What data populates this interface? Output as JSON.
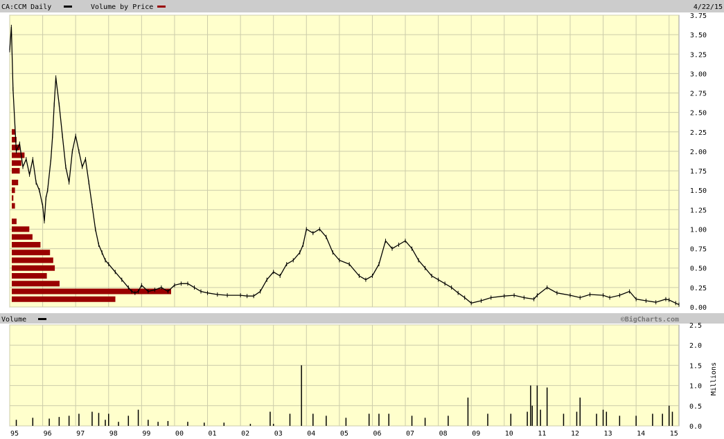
{
  "header": {
    "symbol_label": "CA:CCM Daily",
    "vbp_label": "Volume by Price",
    "date": "4/22/15"
  },
  "volume_panel": {
    "label": "Volume",
    "credit": "©BigCharts.com",
    "unit_label": "Millions"
  },
  "colors": {
    "background": "#ffffcc",
    "grid": "#ccccaa",
    "price_line": "#000000",
    "volume_by_price": "#990000",
    "volume_bars": "#000000",
    "header_bar": "#cccccc"
  },
  "x_tick_labels": [
    "95",
    "96",
    "97",
    "98",
    "99",
    "00",
    "01",
    "02",
    "03",
    "04",
    "05",
    "06",
    "07",
    "08",
    "09",
    "10",
    "11",
    "12",
    "13",
    "14",
    "15"
  ],
  "chart_data": [
    {
      "type": "line",
      "title": "CA:CCM Daily",
      "series": [
        {
          "name": "CA:CCM Daily",
          "x": [
            1995.0,
            1995.05,
            1995.1,
            1995.2,
            1995.3,
            1995.4,
            1995.5,
            1995.6,
            1995.7,
            1995.8,
            1995.9,
            1996.0,
            1996.05,
            1996.1,
            1996.15,
            1996.25,
            1996.3,
            1996.35,
            1996.4,
            1996.5,
            1996.6,
            1996.7,
            1996.8,
            1996.9,
            1997.0,
            1997.1,
            1997.2,
            1997.3,
            1997.4,
            1997.5,
            1997.6,
            1997.7,
            1997.8,
            1997.9,
            1998.0,
            1998.2,
            1998.4,
            1998.6,
            1998.7,
            1998.8,
            1998.9,
            1999.0,
            1999.2,
            1999.4,
            1999.6,
            1999.8,
            2000.0,
            2000.2,
            2000.4,
            2000.6,
            2000.8,
            2001.0,
            2001.3,
            2001.6,
            2002.0,
            2002.2,
            2002.4,
            2002.6,
            2002.8,
            2003.0,
            2003.2,
            2003.4,
            2003.6,
            2003.8,
            2003.9,
            2004.0,
            2004.2,
            2004.4,
            2004.6,
            2004.8,
            2005.0,
            2005.3,
            2005.6,
            2005.8,
            2006.0,
            2006.2,
            2006.4,
            2006.6,
            2006.8,
            2007.0,
            2007.2,
            2007.4,
            2007.6,
            2007.8,
            2008.0,
            2008.2,
            2008.4,
            2008.6,
            2008.8,
            2009.0,
            2009.3,
            2009.6,
            2010.0,
            2010.3,
            2010.6,
            2010.9,
            2011.0,
            2011.3,
            2011.6,
            2012.0,
            2012.3,
            2012.6,
            2013.0,
            2013.2,
            2013.5,
            2013.8,
            2014.0,
            2014.3,
            2014.6,
            2014.9,
            2015.0,
            2015.2,
            2015.3
          ],
          "y": [
            3.3,
            3.6,
            2.8,
            2.0,
            2.1,
            1.8,
            1.9,
            1.7,
            1.9,
            1.6,
            1.5,
            1.3,
            1.1,
            1.4,
            1.5,
            1.9,
            2.2,
            2.6,
            2.95,
            2.6,
            2.2,
            1.8,
            1.6,
            2.0,
            2.2,
            2.0,
            1.8,
            1.9,
            1.6,
            1.3,
            1.0,
            0.8,
            0.7,
            0.6,
            0.55,
            0.45,
            0.35,
            0.25,
            0.2,
            0.18,
            0.2,
            0.28,
            0.2,
            0.22,
            0.25,
            0.2,
            0.28,
            0.3,
            0.3,
            0.25,
            0.2,
            0.18,
            0.16,
            0.15,
            0.15,
            0.14,
            0.14,
            0.2,
            0.35,
            0.45,
            0.4,
            0.55,
            0.6,
            0.7,
            0.8,
            1.0,
            0.95,
            1.0,
            0.9,
            0.7,
            0.6,
            0.55,
            0.4,
            0.35,
            0.4,
            0.55,
            0.85,
            0.75,
            0.8,
            0.85,
            0.75,
            0.6,
            0.5,
            0.4,
            0.35,
            0.3,
            0.25,
            0.18,
            0.12,
            0.05,
            0.08,
            0.12,
            0.14,
            0.15,
            0.12,
            0.1,
            0.15,
            0.25,
            0.18,
            0.15,
            0.12,
            0.16,
            0.15,
            0.12,
            0.15,
            0.2,
            0.1,
            0.08,
            0.06,
            0.1,
            0.09,
            0.05,
            0.03
          ]
        }
      ],
      "xlim": [
        1995.0,
        2015.3
      ],
      "ylim": [
        0.0,
        3.75
      ],
      "y_ticks": [
        "3.75",
        "3.50",
        "3.25",
        "3.00",
        "2.75",
        "2.50",
        "2.25",
        "2.00",
        "1.75",
        "1.50",
        "1.25",
        "1.00",
        "0.75",
        "0.50",
        "0.25",
        "0.00"
      ],
      "x_ticks": [
        "95",
        "96",
        "97",
        "98",
        "99",
        "00",
        "01",
        "02",
        "03",
        "04",
        "05",
        "06",
        "07",
        "08",
        "09",
        "10",
        "11",
        "12",
        "13",
        "14",
        "15"
      ],
      "grid": true,
      "legend": "top-left"
    },
    {
      "type": "bar",
      "title": "Volume by Price",
      "orientation": "horizontal",
      "price_levels": [
        2.25,
        2.15,
        2.05,
        1.95,
        1.85,
        1.75,
        1.6,
        1.5,
        1.4,
        1.3,
        1.1,
        1.0,
        0.9,
        0.8,
        0.7,
        0.6,
        0.5,
        0.4,
        0.3,
        0.2,
        0.1
      ],
      "values": [
        0.02,
        0.03,
        0.05,
        0.08,
        0.06,
        0.05,
        0.04,
        0.02,
        0.01,
        0.02,
        0.03,
        0.11,
        0.13,
        0.18,
        0.24,
        0.26,
        0.27,
        0.22,
        0.3,
        1.0,
        0.65
      ],
      "value_scale": "relative (largest bar = 1.0)",
      "legend": "top-left"
    },
    {
      "type": "bar",
      "title": "Volume",
      "ylabel": "Millions",
      "ylim": [
        0.0,
        2.5
      ],
      "y_ticks": [
        "2.5",
        "2.0",
        "1.5",
        "1.0",
        "0.5",
        "0.0"
      ],
      "x": [
        1995.2,
        1995.7,
        1996.2,
        1996.5,
        1996.8,
        1997.1,
        1997.5,
        1997.7,
        1997.9,
        1998.0,
        1998.3,
        1998.6,
        1998.9,
        1999.2,
        1999.5,
        1999.8,
        2000.4,
        2000.9,
        2001.5,
        2002.3,
        2002.9,
        2003.0,
        2003.5,
        2003.85,
        2004.2,
        2004.6,
        2005.2,
        2005.9,
        2006.2,
        2006.5,
        2007.2,
        2007.6,
        2008.3,
        2008.9,
        2009.5,
        2010.2,
        2010.7,
        2010.8,
        2010.85,
        2011.0,
        2011.1,
        2011.3,
        2011.8,
        2012.2,
        2012.3,
        2012.8,
        2013.0,
        2013.1,
        2013.5,
        2014.0,
        2014.5,
        2014.8,
        2015.0,
        2015.1
      ],
      "values": [
        0.15,
        0.2,
        0.18,
        0.22,
        0.25,
        0.3,
        0.35,
        0.32,
        0.15,
        0.3,
        0.1,
        0.25,
        0.4,
        0.15,
        0.1,
        0.12,
        0.1,
        0.08,
        0.08,
        0.05,
        0.35,
        0.05,
        0.3,
        1.5,
        0.3,
        0.25,
        0.2,
        0.3,
        0.3,
        0.3,
        0.25,
        0.2,
        0.25,
        0.7,
        0.3,
        0.3,
        0.35,
        1.0,
        0.5,
        1.0,
        0.4,
        0.95,
        0.3,
        0.35,
        0.7,
        0.3,
        0.4,
        0.35,
        0.25,
        0.25,
        0.3,
        0.3,
        0.5,
        0.35
      ],
      "grid": true
    }
  ]
}
